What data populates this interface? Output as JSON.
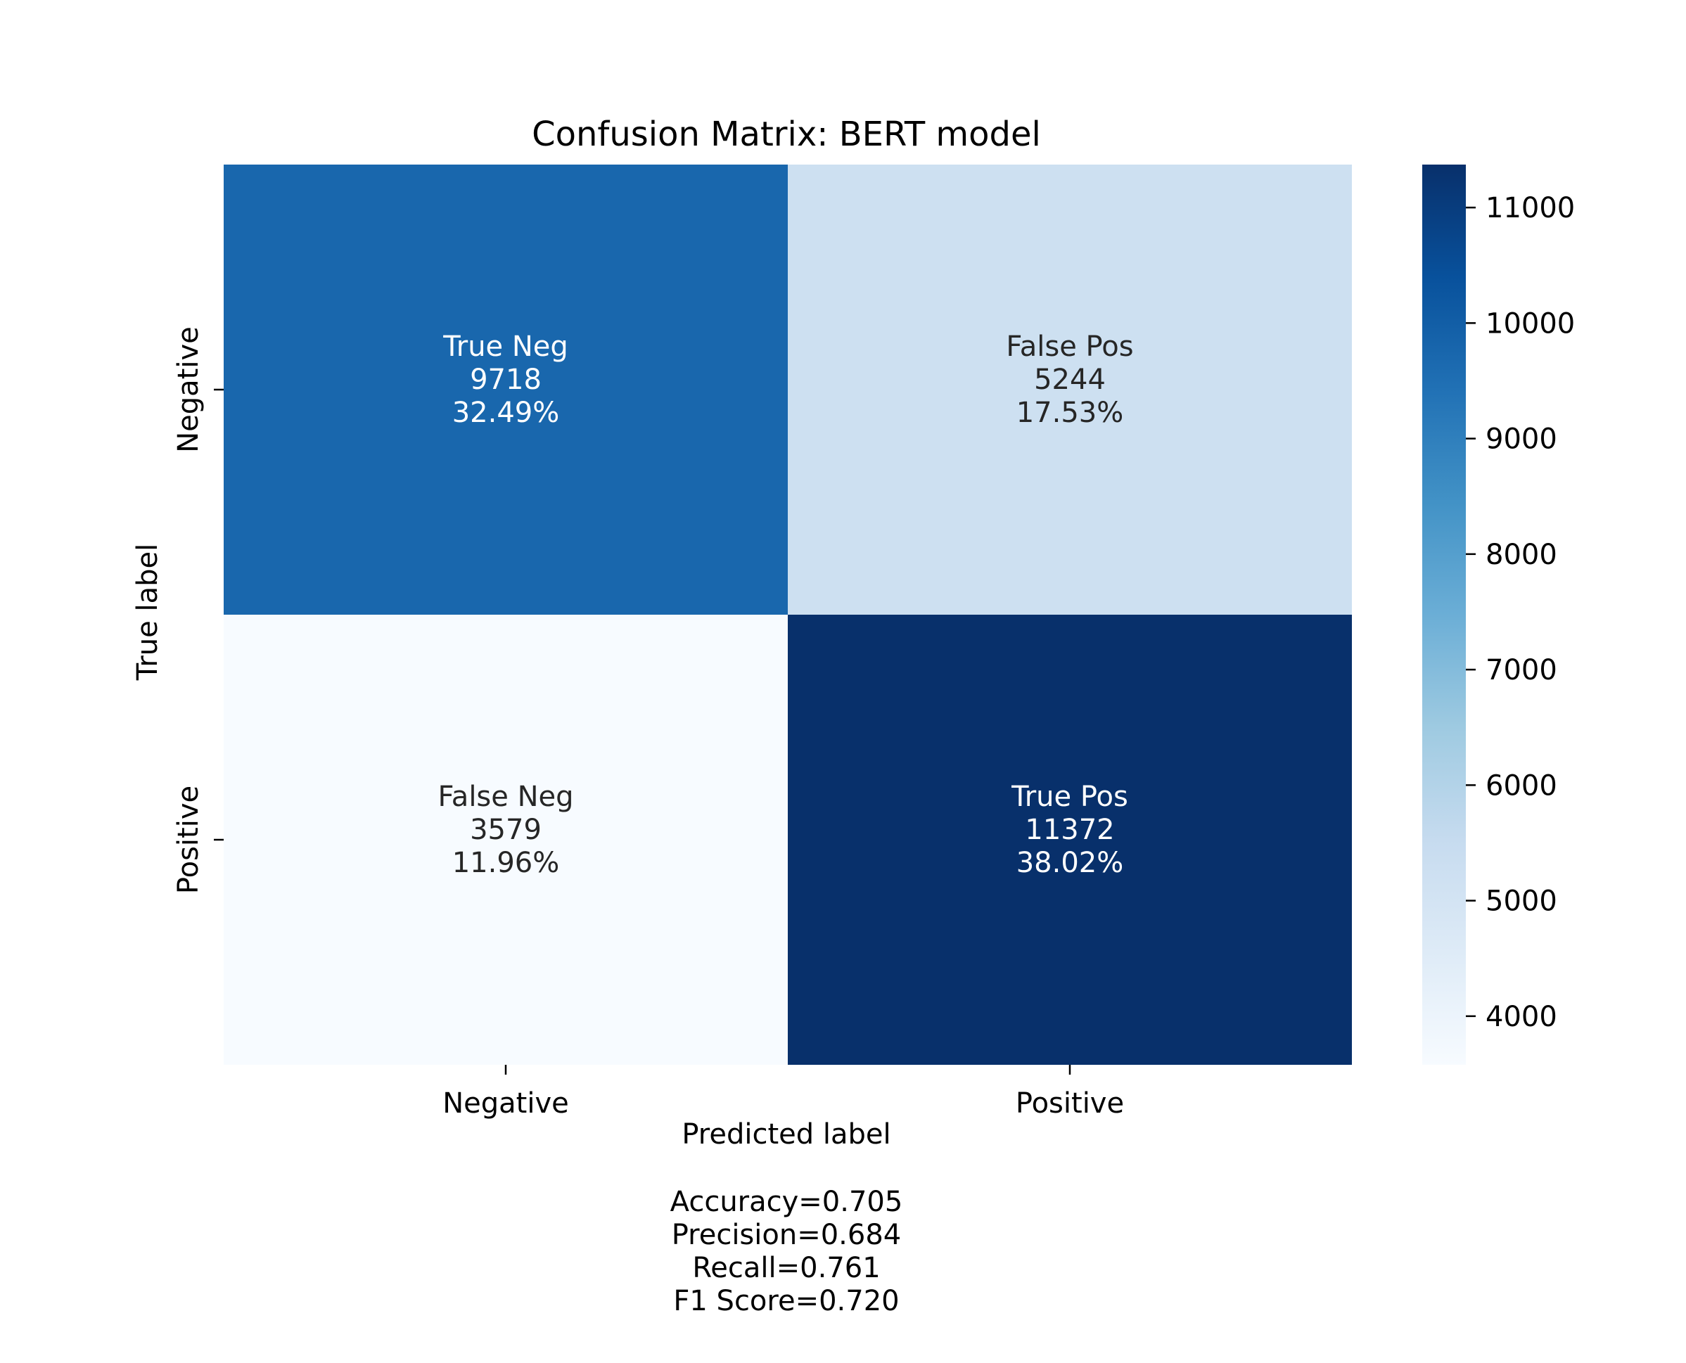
{
  "chart_data": {
    "type": "heatmap",
    "title": "Confusion Matrix: BERT model",
    "xlabel": "Predicted label",
    "ylabel": "True label",
    "x_categories": [
      "Negative",
      "Positive"
    ],
    "y_categories": [
      "Negative",
      "Positive"
    ],
    "cells": [
      [
        {
          "group": "True Neg",
          "count": 9718,
          "percent": "32.49%"
        },
        {
          "group": "False Pos",
          "count": 5244,
          "percent": "17.53%"
        }
      ],
      [
        {
          "group": "False Neg",
          "count": 3579,
          "percent": "11.96%"
        },
        {
          "group": "True Pos",
          "count": 11372,
          "percent": "38.02%"
        }
      ]
    ],
    "colormap": "Blues",
    "colorbar": {
      "range": [
        3579,
        11372
      ],
      "ticks": [
        4000,
        5000,
        6000,
        7000,
        8000,
        9000,
        10000,
        11000
      ],
      "tick_labels": [
        "4000",
        "5000",
        "6000",
        "7000",
        "8000",
        "9000",
        "10000",
        "11000"
      ]
    },
    "stats": [
      "Accuracy=0.705",
      "Precision=0.684",
      "Recall=0.761",
      "F1 Score=0.720"
    ]
  }
}
